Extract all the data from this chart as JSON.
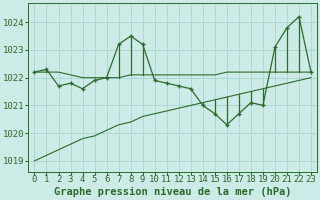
{
  "title": "Graphe pression niveau de la mer (hPa)",
  "background_color": "#cceae6",
  "grid_color": "#aad4d0",
  "line_color": "#2d6b2d",
  "ylim": [
    1018.6,
    1024.7
  ],
  "yticks": [
    1019,
    1020,
    1021,
    1022,
    1023,
    1024
  ],
  "xlim": [
    -0.5,
    23.5
  ],
  "xticks": [
    0,
    1,
    2,
    3,
    4,
    5,
    6,
    7,
    8,
    9,
    10,
    11,
    12,
    13,
    14,
    15,
    16,
    17,
    18,
    19,
    20,
    21,
    22,
    23
  ],
  "hours": [
    0,
    1,
    2,
    3,
    4,
    5,
    6,
    7,
    8,
    9,
    10,
    11,
    12,
    13,
    14,
    15,
    16,
    17,
    18,
    19,
    20,
    21,
    22,
    23
  ],
  "pressure": [
    1022.2,
    1022.3,
    1021.7,
    1021.8,
    1021.6,
    1021.9,
    1022.0,
    1023.2,
    1023.5,
    1023.2,
    1021.9,
    1021.8,
    1021.7,
    1021.6,
    1021.0,
    1020.7,
    1020.3,
    1020.7,
    1021.1,
    1021.0,
    1023.1,
    1023.8,
    1024.2,
    1022.2
  ],
  "upper_envelope": [
    1022.2,
    1022.2,
    1022.2,
    1022.1,
    1022.0,
    1022.0,
    1022.0,
    1022.0,
    1022.1,
    1022.1,
    1022.1,
    1022.1,
    1022.1,
    1022.1,
    1022.1,
    1022.1,
    1022.2,
    1022.2,
    1022.2,
    1022.2,
    1022.2,
    1022.2,
    1022.2,
    1022.2
  ],
  "lower_envelope": [
    1019.0,
    1019.2,
    1019.4,
    1019.6,
    1019.8,
    1019.9,
    1020.1,
    1020.3,
    1020.4,
    1020.6,
    1020.7,
    1020.8,
    1020.9,
    1021.0,
    1021.1,
    1021.2,
    1021.3,
    1021.4,
    1021.5,
    1021.6,
    1021.7,
    1021.8,
    1021.9,
    1022.0
  ],
  "font_size_title": 7.5,
  "font_size_ticks": 6.5,
  "lw_main": 0.9,
  "lw_env": 0.8
}
